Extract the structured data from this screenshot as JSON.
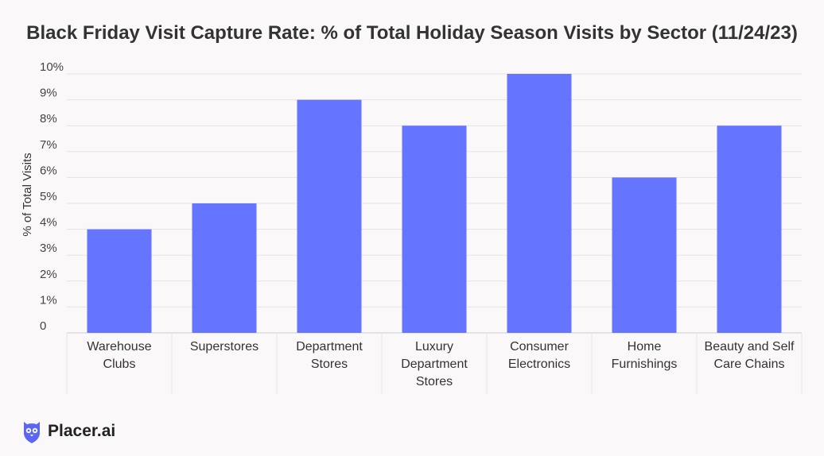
{
  "chart_data": {
    "type": "bar",
    "title": "Black Friday Visit Capture Rate: % of Total Holiday Season Visits by Sector (11/24/23)",
    "ylabel": "% of Total Visits",
    "xlabel": "",
    "categories": [
      [
        "Warehouse",
        "Clubs"
      ],
      [
        "Superstores"
      ],
      [
        "Department",
        "Stores"
      ],
      [
        "Luxury",
        "Department",
        "Stores"
      ],
      [
        "Consumer",
        "Electronics"
      ],
      [
        "Home",
        "Furnishings"
      ],
      [
        "Beauty and Self",
        "Care Chains"
      ]
    ],
    "values": [
      4,
      5,
      9,
      8,
      10,
      6,
      8
    ],
    "ylim": [
      0,
      10
    ],
    "yticks": [
      "0",
      "1%",
      "2%",
      "3%",
      "4%",
      "5%",
      "6%",
      "7%",
      "8%",
      "9%",
      "10%"
    ],
    "bar_color": "#6675ff",
    "grid": true
  },
  "brand": {
    "name": "Placer.ai",
    "logo_icon": "owl-icon",
    "logo_color": "#5b67f2"
  }
}
